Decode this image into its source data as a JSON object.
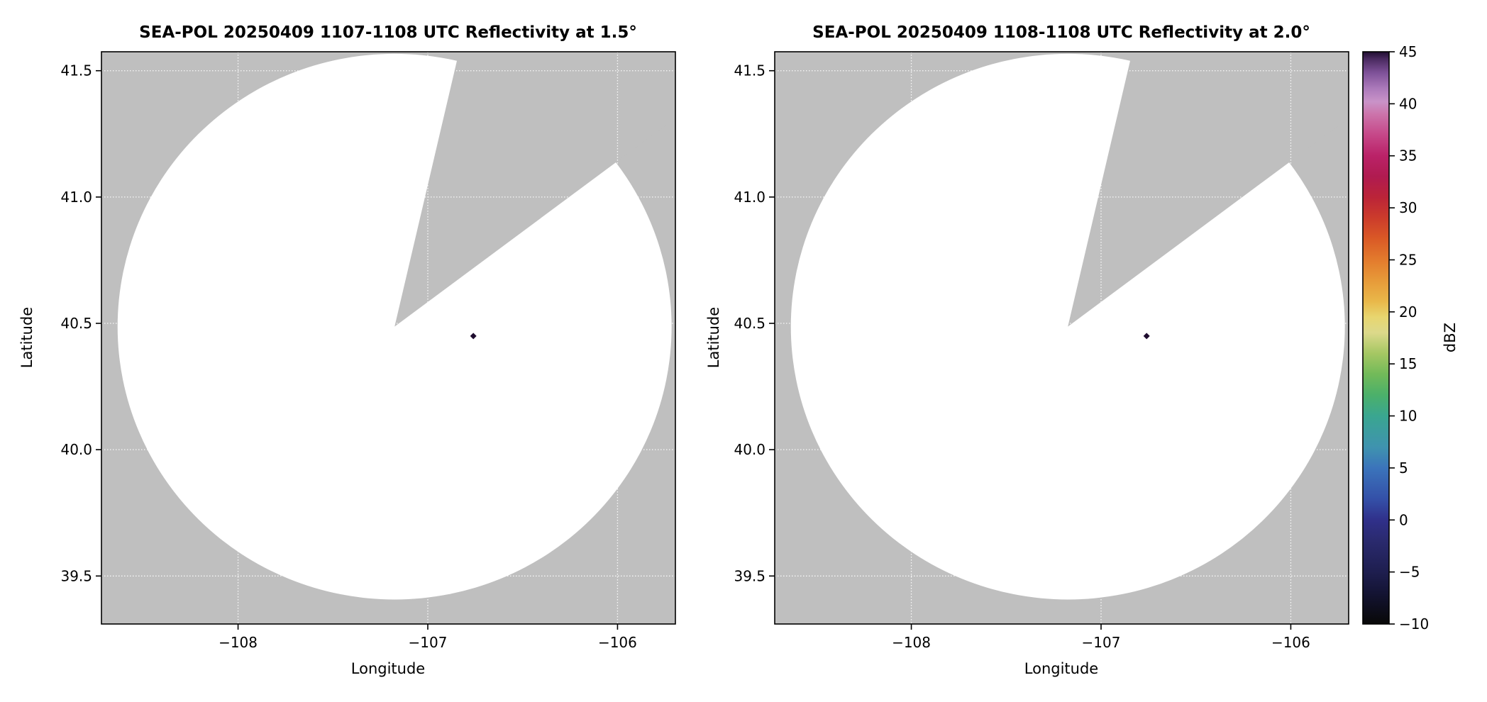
{
  "style": {
    "background": "#ffffff",
    "no_data_gray": "#bfbfbf",
    "scan_fill": "#ffffff",
    "grid_color": "#ffffff",
    "axes_color": "#000000",
    "echo_color": "#1e0c2e"
  },
  "chart_data": [
    {
      "type": "heatmap",
      "subtype": "radar-ppi-map",
      "title": "SEA-POL 20250409 1107-1108 UTC Reflectivity at 1.5°",
      "xlabel": "Longitude",
      "ylabel": "Latitude",
      "xlim": [
        -108.72,
        -105.695
      ],
      "ylim": [
        39.31,
        41.575
      ],
      "xticks": [
        -108,
        -107,
        -106
      ],
      "xtick_labels": [
        "−108",
        "−107",
        "−106"
      ],
      "yticks": [
        39.5,
        40.0,
        40.5,
        41.0,
        41.5
      ],
      "ytick_labels": [
        "39.5",
        "40.0",
        "40.5",
        "41.0",
        "41.5"
      ],
      "grid": true,
      "legend_position": "none",
      "radar": {
        "center_lon": -107.175,
        "center_lat": 40.487,
        "radius_lon_deg": 1.46,
        "radius_lat_deg": 1.08,
        "blocked_sector_azimuth_deg": [
          13,
          53
        ],
        "echoes": [
          {
            "lon": -106.76,
            "lat": 40.45,
            "dbz": 45
          }
        ]
      }
    },
    {
      "type": "heatmap",
      "subtype": "radar-ppi-map",
      "title": "SEA-POL 20250409 1108-1108 UTC Reflectivity at 2.0°",
      "xlabel": "Longitude",
      "ylabel": "Latitude",
      "xlim": [
        -108.72,
        -105.695
      ],
      "ylim": [
        39.31,
        41.575
      ],
      "xticks": [
        -108,
        -107,
        -106
      ],
      "xtick_labels": [
        "−108",
        "−107",
        "−106"
      ],
      "yticks": [
        39.5,
        40.0,
        40.5,
        41.0,
        41.5
      ],
      "ytick_labels": [
        "39.5",
        "40.0",
        "40.5",
        "41.0",
        "41.5"
      ],
      "grid": true,
      "legend_position": "none",
      "radar": {
        "center_lon": -107.175,
        "center_lat": 40.487,
        "radius_lon_deg": 1.46,
        "radius_lat_deg": 1.08,
        "blocked_sector_azimuth_deg": [
          13,
          53
        ],
        "echoes": [
          {
            "lon": -106.76,
            "lat": 40.45,
            "dbz": 45
          }
        ]
      }
    }
  ],
  "colorbar": {
    "label": "dBZ",
    "min": -10,
    "max": 45,
    "ticks": [
      45,
      40,
      35,
      30,
      25,
      20,
      15,
      10,
      5,
      0,
      -5,
      -10
    ],
    "tick_labels": [
      "45",
      "40",
      "35",
      "30",
      "25",
      "20",
      "15",
      "10",
      "5",
      "0",
      "−5",
      "−10"
    ],
    "stops": [
      [
        -10,
        "#080808"
      ],
      [
        -7,
        "#141434"
      ],
      [
        -5,
        "#1e1e4f"
      ],
      [
        -2,
        "#2a2a6e"
      ],
      [
        0,
        "#30308a"
      ],
      [
        2,
        "#3450a8"
      ],
      [
        5,
        "#3b74bb"
      ],
      [
        7,
        "#3f93af"
      ],
      [
        10,
        "#3aa690"
      ],
      [
        12,
        "#4bb06a"
      ],
      [
        14,
        "#72ba59"
      ],
      [
        16,
        "#a5c763"
      ],
      [
        18,
        "#dcd98b"
      ],
      [
        19.5,
        "#e8d66f"
      ],
      [
        21,
        "#e9b84a"
      ],
      [
        23,
        "#e79a39"
      ],
      [
        25,
        "#e37b2d"
      ],
      [
        27,
        "#da5a26"
      ],
      [
        29,
        "#cc3c2b"
      ],
      [
        31,
        "#bb2438"
      ],
      [
        33,
        "#b01b50"
      ],
      [
        35,
        "#ba2268"
      ],
      [
        37,
        "#c64788"
      ],
      [
        39,
        "#cc74ab"
      ],
      [
        40.2,
        "#c993c8"
      ],
      [
        41.5,
        "#ab79ba"
      ],
      [
        43,
        "#7e5198"
      ],
      [
        44.3,
        "#4a2a60"
      ],
      [
        45,
        "#200e30"
      ]
    ]
  }
}
